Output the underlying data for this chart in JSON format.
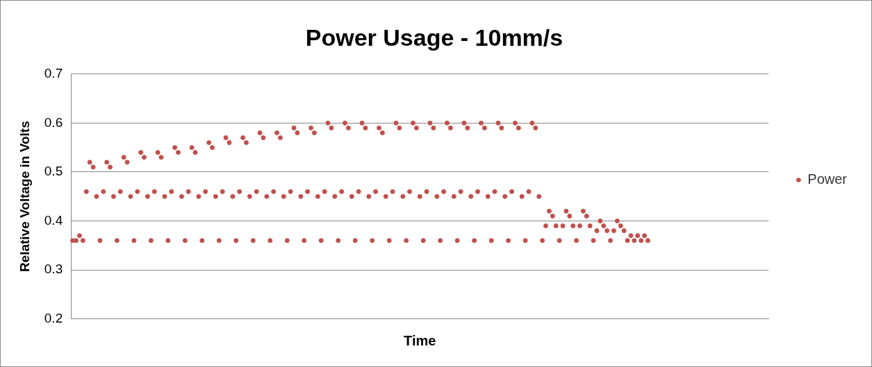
{
  "chart_data": {
    "type": "scatter",
    "title": "Power Usage - 10mm/s",
    "xlabel": "Time",
    "ylabel": "Relative Voltage in Volts",
    "categories": [
      null,
      null,
      null,
      null,
      null,
      null,
      null,
      null,
      null,
      null,
      null,
      null,
      null,
      null,
      null,
      null,
      null,
      null,
      null,
      null,
      null,
      null,
      null,
      null,
      null,
      null,
      null,
      null,
      null,
      null,
      null,
      null,
      null,
      null,
      null,
      null,
      null,
      null,
      null,
      null,
      null,
      null,
      null,
      null,
      null,
      null,
      null,
      null,
      null,
      null,
      null,
      null,
      null,
      null,
      null,
      null,
      null,
      null,
      null,
      null,
      null,
      null,
      null,
      null,
      null,
      null,
      null,
      null,
      null,
      null,
      null,
      null,
      null,
      null,
      null,
      null,
      null,
      null,
      null,
      null,
      null,
      null,
      null,
      null,
      null,
      null,
      null,
      null,
      null,
      null,
      null,
      null,
      null,
      null,
      null,
      null,
      null,
      null,
      null,
      null,
      null,
      null,
      null,
      null,
      null,
      null,
      null,
      null,
      null,
      null,
      null,
      null,
      null,
      null,
      null,
      null,
      null,
      null,
      null,
      null,
      null,
      null,
      null,
      null,
      null,
      null,
      null,
      null,
      null,
      null,
      null,
      null,
      null,
      null,
      null,
      null,
      null,
      null,
      null,
      null,
      null,
      null,
      null,
      null,
      null,
      null,
      null,
      null,
      null,
      null,
      null,
      null,
      null,
      null,
      null,
      null,
      null,
      null,
      null,
      null,
      null,
      null,
      null,
      null,
      null,
      null,
      null,
      null,
      null,
      null,
      null,
      null,
      null,
      null,
      null,
      null,
      null,
      null,
      null,
      null,
      null,
      null,
      null,
      null,
      null,
      null,
      null,
      null,
      null,
      null,
      null,
      null,
      null,
      null,
      null,
      null,
      null,
      null,
      null,
      null,
      null,
      null,
      null,
      null,
      null
    ],
    "series": [
      {
        "name": "Power",
        "color": "#c0504d",
        "values": [
          0.36,
          0.36,
          0.37,
          0.36,
          0.46,
          0.52,
          0.51,
          0.45,
          0.36,
          0.46,
          0.52,
          0.51,
          0.45,
          0.36,
          0.46,
          0.53,
          0.52,
          0.45,
          0.36,
          0.46,
          0.54,
          0.53,
          0.45,
          0.36,
          0.46,
          0.54,
          0.53,
          0.45,
          0.36,
          0.46,
          0.55,
          0.54,
          0.45,
          0.36,
          0.46,
          0.55,
          0.54,
          0.45,
          0.36,
          0.46,
          0.56,
          0.55,
          0.45,
          0.36,
          0.46,
          0.57,
          0.56,
          0.45,
          0.36,
          0.46,
          0.57,
          0.56,
          0.45,
          0.36,
          0.46,
          0.58,
          0.57,
          0.45,
          0.36,
          0.46,
          0.58,
          0.57,
          0.45,
          0.36,
          0.46,
          0.59,
          0.58,
          0.45,
          0.36,
          0.46,
          0.59,
          0.58,
          0.45,
          0.36,
          0.46,
          0.6,
          0.59,
          0.45,
          0.36,
          0.46,
          0.6,
          0.59,
          0.45,
          0.36,
          0.46,
          0.6,
          0.59,
          0.45,
          0.36,
          0.46,
          0.59,
          0.58,
          0.45,
          0.36,
          0.46,
          0.6,
          0.59,
          0.45,
          0.36,
          0.46,
          0.6,
          0.59,
          0.45,
          0.36,
          0.46,
          0.6,
          0.59,
          0.45,
          0.36,
          0.46,
          0.6,
          0.59,
          0.45,
          0.36,
          0.46,
          0.6,
          0.59,
          0.45,
          0.36,
          0.46,
          0.6,
          0.59,
          0.45,
          0.36,
          0.46,
          0.6,
          0.59,
          0.45,
          0.36,
          0.46,
          0.6,
          0.59,
          0.45,
          0.36,
          0.46,
          0.6,
          0.59,
          0.45,
          0.36,
          0.39,
          0.42,
          0.41,
          0.39,
          0.36,
          0.39,
          0.42,
          0.41,
          0.39,
          0.36,
          0.39,
          0.42,
          0.41,
          0.39,
          0.36,
          0.38,
          0.4,
          0.39,
          0.38,
          0.36,
          0.38,
          0.4,
          0.39,
          0.38,
          0.36,
          0.37,
          0.36,
          0.37,
          0.36,
          0.37,
          0.36,
          null,
          null,
          null,
          null,
          null,
          null,
          null,
          null,
          null,
          null,
          null,
          null,
          null,
          null,
          null,
          null,
          null,
          null,
          null,
          null,
          null,
          null,
          null,
          null,
          null,
          null,
          null,
          null,
          null,
          null,
          null,
          null,
          null,
          null,
          null
        ]
      }
    ],
    "ylim": [
      0.2,
      0.7
    ],
    "yticks": [
      0.2,
      0.3,
      0.4,
      0.5,
      0.6,
      0.7
    ],
    "grid": "y",
    "legend": "right",
    "marker": "circle"
  }
}
